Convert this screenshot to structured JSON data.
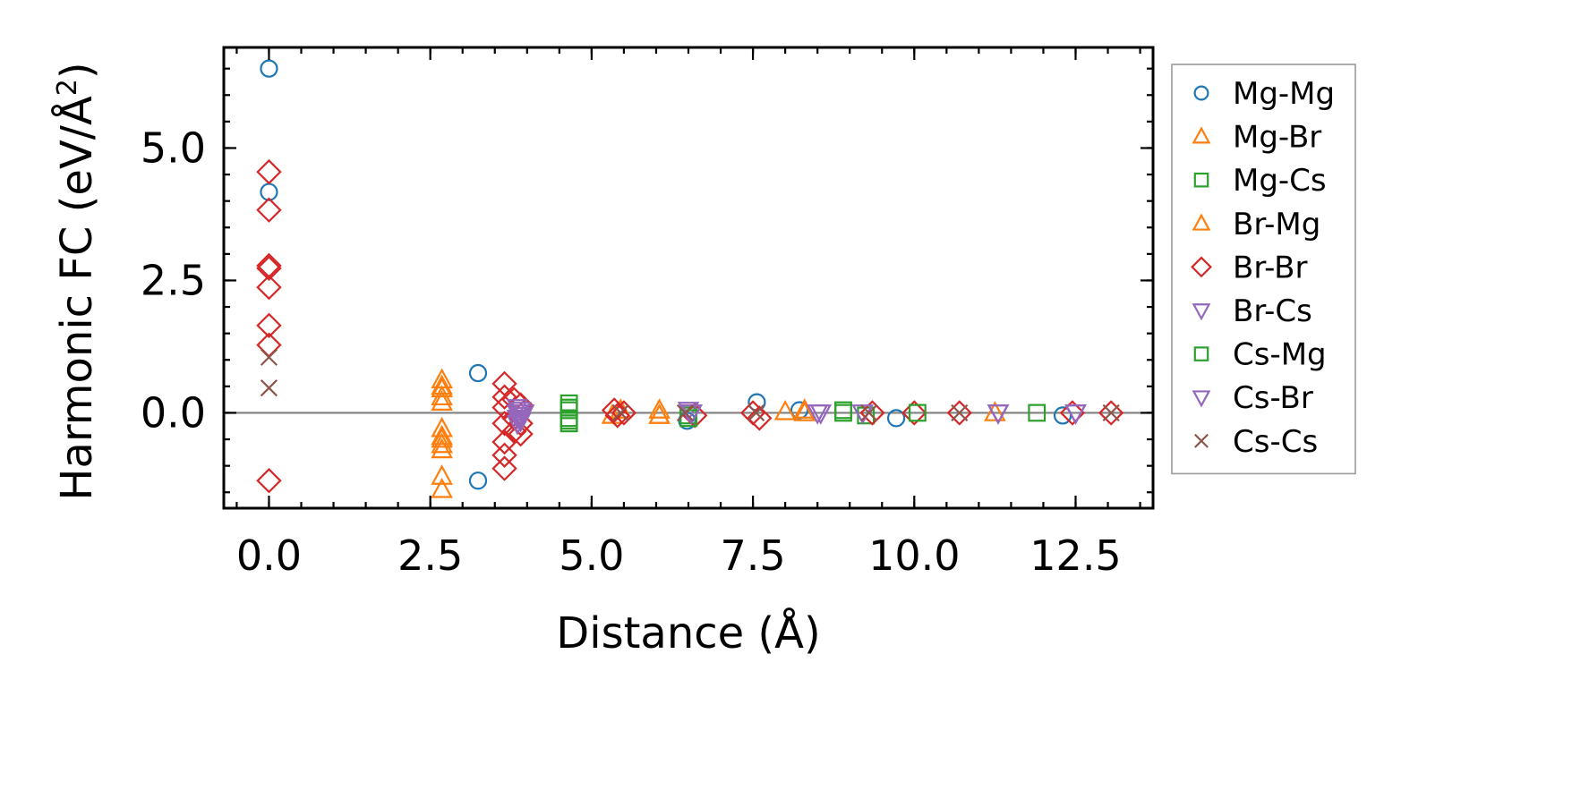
{
  "chart_data": {
    "type": "scatter",
    "title": "",
    "xlabel": "Distance (Å)",
    "ylabel": "Harmonic FC (eV/Å²)",
    "ylabel_base": "Harmonic FC (eV/Å",
    "ylabel_sup": "2",
    "ylabel_close": ")",
    "xlim": [
      -0.7,
      13.7
    ],
    "ylim": [
      -1.8,
      6.9
    ],
    "xticks": [
      0.0,
      2.5,
      5.0,
      7.5,
      10.0,
      12.5
    ],
    "xtick_labels": [
      "0.0",
      "2.5",
      "5.0",
      "7.5",
      "10.0",
      "12.5"
    ],
    "yticks": [
      0.0,
      2.5,
      5.0
    ],
    "ytick_labels": [
      "0.0",
      "2.5",
      "5.0"
    ],
    "x_minor_step": 0.5,
    "y_minor_step": 0.5,
    "zero_line": true,
    "legend_position": "outside-right",
    "series": [
      {
        "name": "Mg-Mg",
        "marker": "circle",
        "color": "#1f77b4",
        "x": [
          0,
          0,
          3.24,
          3.24,
          6.48,
          7.56,
          8.22,
          9.72,
          12.3
        ],
        "y": [
          6.5,
          4.17,
          0.75,
          -1.28,
          -0.15,
          0.2,
          0.05,
          -0.1,
          -0.05
        ]
      },
      {
        "name": "Mg-Br",
        "marker": "triangle-up",
        "color": "#ff7f0e",
        "x": [
          2.68,
          2.68,
          2.68,
          2.68,
          2.68,
          2.68,
          2.68,
          2.68,
          5.32,
          6.05,
          6.05,
          8.0,
          8.3
        ],
        "y": [
          0.62,
          0.45,
          0.3,
          -0.3,
          -0.45,
          -0.6,
          -1.2,
          -1.45,
          -0.05,
          0.05,
          -0.05,
          0.02,
          0.0
        ]
      },
      {
        "name": "Mg-Cs",
        "marker": "square",
        "color": "#2ca02c",
        "x": [
          4.65,
          4.65,
          4.65,
          4.65,
          6.5,
          8.9,
          9.25,
          11.9
        ],
        "y": [
          0.18,
          0.05,
          -0.1,
          -0.2,
          -0.05,
          0.0,
          -0.05,
          0.0
        ]
      },
      {
        "name": "Br-Mg",
        "marker": "triangle-up",
        "color": "#ff7f0e",
        "x": [
          2.68,
          2.68,
          2.68,
          2.68,
          5.45,
          6.05,
          8.3,
          11.25
        ],
        "y": [
          0.5,
          0.2,
          -0.5,
          -0.7,
          0.05,
          -0.05,
          0.05,
          0.0
        ]
      },
      {
        "name": "Br-Br",
        "marker": "diamond",
        "color": "#d62728",
        "x": [
          0,
          0,
          0,
          0,
          0,
          0,
          0,
          0,
          3.65,
          3.65,
          3.65,
          3.65,
          3.65,
          3.65,
          3.65,
          3.8,
          3.8,
          3.8,
          3.9,
          3.9,
          3.9,
          5.35,
          5.4,
          5.5,
          6.6,
          7.5,
          7.6,
          9.35,
          10.0,
          10.7,
          12.45,
          13.05
        ],
        "y": [
          4.55,
          3.83,
          2.73,
          2.37,
          1.65,
          1.28,
          -1.28,
          2.78,
          0.55,
          0.3,
          0.1,
          -0.2,
          -0.55,
          -0.8,
          -1.05,
          0.25,
          -0.1,
          -0.35,
          0.15,
          -0.2,
          -0.4,
          0.05,
          -0.05,
          0.0,
          -0.05,
          0.0,
          -0.1,
          0.0,
          0.0,
          0.0,
          0.0,
          0.0
        ]
      },
      {
        "name": "Br-Cs",
        "marker": "triangle-down",
        "color": "#9467bd",
        "x": [
          3.85,
          3.85,
          3.85,
          3.9,
          3.9,
          3.95,
          6.5,
          6.55,
          8.5,
          9.2,
          11.3,
          12.5
        ],
        "y": [
          0.1,
          0.0,
          -0.1,
          0.05,
          -0.05,
          0.0,
          0.05,
          0.0,
          0.0,
          0.0,
          0.0,
          0.0
        ]
      },
      {
        "name": "Cs-Mg",
        "marker": "square",
        "color": "#2ca02c",
        "x": [
          4.65,
          4.65,
          6.5,
          8.9,
          10.05
        ],
        "y": [
          -0.15,
          0.1,
          -0.1,
          0.05,
          0.0
        ]
      },
      {
        "name": "Cs-Br",
        "marker": "triangle-down",
        "color": "#9467bd",
        "x": [
          3.85,
          3.9,
          6.55,
          8.55,
          11.3,
          12.5
        ],
        "y": [
          -0.2,
          -0.15,
          0.0,
          0.0,
          0.0,
          0.0
        ]
      },
      {
        "name": "Cs-Cs",
        "marker": "x",
        "color": "#8c564b",
        "x": [
          0,
          0,
          5.45,
          6.45,
          7.55,
          9.3,
          10.7,
          13.05
        ],
        "y": [
          1.05,
          0.47,
          0.0,
          0.0,
          0.0,
          0.0,
          0.0,
          0.0
        ]
      }
    ]
  }
}
